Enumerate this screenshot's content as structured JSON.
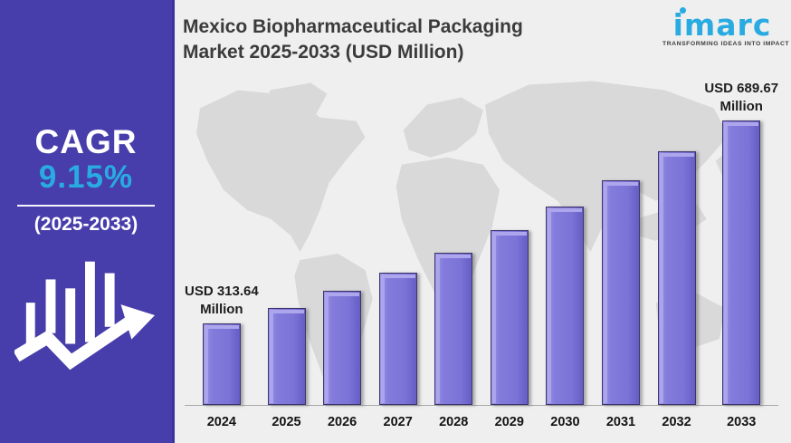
{
  "sidebar": {
    "cagr_label": "CAGR",
    "cagr_value": "9.15%",
    "period": "(2025-2033)"
  },
  "header": {
    "title": "Mexico Biopharmaceutical Packaging Market 2025-2033 (USD Million)"
  },
  "logo": {
    "brand": "imarc",
    "tagline": "TRANSFORMING IDEAS INTO IMPACT"
  },
  "colors": {
    "sidebar_bg": "#473dab",
    "accent_blue": "#29abe2",
    "bar_fill": "#7b73d8",
    "bar_border": "#3c356b",
    "map_gray": "#d9d9d9",
    "background": "#efefef",
    "title_text": "#3b3b3b"
  },
  "chart_data": {
    "type": "bar",
    "title": "Mexico Biopharmaceutical Packaging Market 2025-2033 (USD Million)",
    "unit": "USD Million",
    "categories": [
      "2024",
      "2025",
      "2026",
      "2027",
      "2028",
      "2029",
      "2030",
      "2031",
      "2032",
      "2033"
    ],
    "values": [
      313.64,
      342.34,
      373.66,
      407.85,
      445.17,
      485.9,
      530.36,
      578.89,
      631.86,
      689.67
    ],
    "labeled_points": [
      {
        "index": 0,
        "line1": "USD 313.64",
        "line2": "Million"
      },
      {
        "index": 9,
        "line1": "USD 689.67",
        "line2": "Million"
      }
    ],
    "xlabel": "",
    "ylabel": "",
    "grid": false,
    "legend": false,
    "baseline_note": "bars not drawn from zero; min bar ~90px, max bar ~314px"
  }
}
